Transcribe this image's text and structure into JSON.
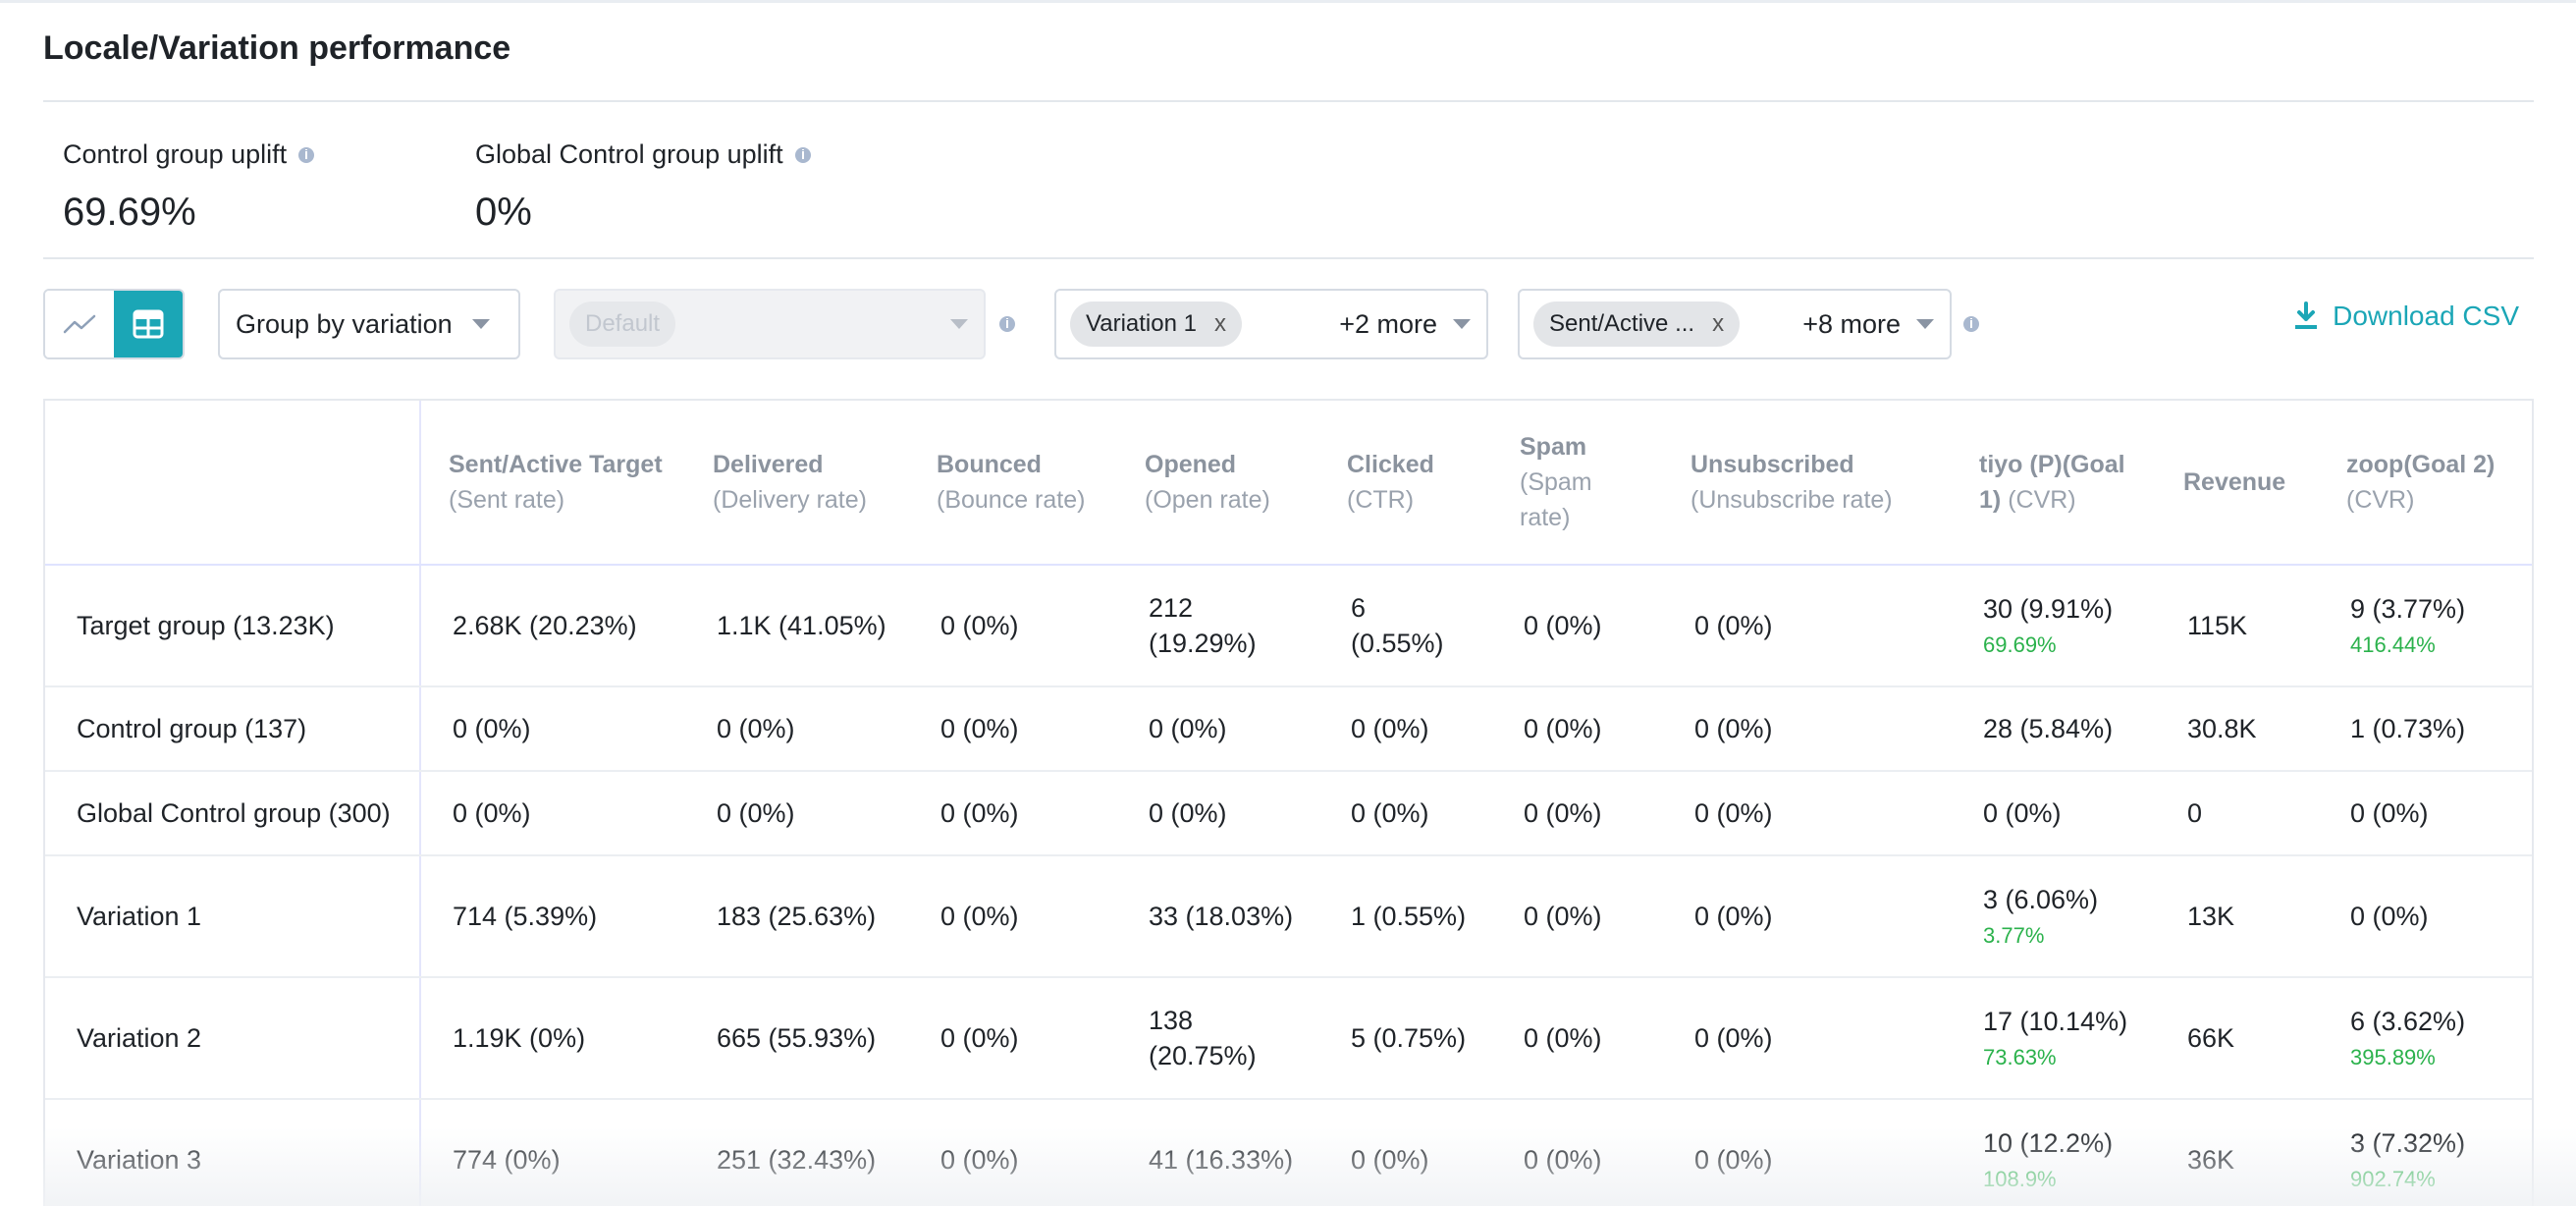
{
  "page": {
    "title": "Locale/Variation performance"
  },
  "metrics": [
    {
      "label": "Control group uplift",
      "value": "69.69%"
    },
    {
      "label": "Global Control group uplift",
      "value": "0%"
    }
  ],
  "toolbar": {
    "view_toggle": {
      "chart_icon": "line-chart-icon",
      "table_icon": "table-icon",
      "active": "table"
    },
    "group_by": {
      "value": "Group by variation"
    },
    "locale_select": {
      "placeholder_chip": "Default"
    },
    "variation_select": {
      "chip": "Variation 1",
      "chip_remove": "x",
      "more": "+2 more"
    },
    "metric_select": {
      "chip": "Sent/Active ...",
      "chip_remove": "x",
      "more": "+8 more"
    },
    "download_label": "Download CSV",
    "accent_color": "#1ba6b6"
  },
  "table": {
    "columns": [
      {
        "main": "",
        "sub": ""
      },
      {
        "main": "Sent/Active Target",
        "sub": "(Sent rate)"
      },
      {
        "main": "Delivered",
        "sub": "(Delivery rate)"
      },
      {
        "main": "Bounced",
        "sub": "(Bounce rate)"
      },
      {
        "main": "Opened",
        "sub": "(Open rate)"
      },
      {
        "main": "Clicked",
        "sub": "(CTR)"
      },
      {
        "main": "Spam",
        "sub": "(Spam rate)"
      },
      {
        "main": "Unsubscribed",
        "sub": "(Unsubscribe rate)"
      },
      {
        "main": "tiyo (P)(Goal 1)",
        "sub": "(CVR)"
      },
      {
        "main": "Revenue",
        "sub": ""
      },
      {
        "main": "zoop(Goal 2)",
        "sub": "(CVR)"
      }
    ],
    "rows": [
      {
        "label": "Target group (13.23K)",
        "cells": [
          "2.68K (20.23%)",
          "1.1K (41.05%)",
          "0 (0%)",
          "212 (19.29%)",
          "6 (0.55%)",
          "0 (0%)",
          "0 (0%)",
          "30 (9.91%)",
          "115K",
          "9 (3.77%)"
        ],
        "uplift": {
          "goal1": "69.69%",
          "goal2": "416.44%"
        }
      },
      {
        "label": "Control group (137)",
        "cells": [
          "0 (0%)",
          "0 (0%)",
          "0 (0%)",
          "0 (0%)",
          "0 (0%)",
          "0 (0%)",
          "0 (0%)",
          "28 (5.84%)",
          "30.8K",
          "1 (0.73%)"
        ],
        "uplift": {
          "goal1": "",
          "goal2": ""
        }
      },
      {
        "label": "Global Control group (300)",
        "cells": [
          "0 (0%)",
          "0 (0%)",
          "0 (0%)",
          "0 (0%)",
          "0 (0%)",
          "0 (0%)",
          "0 (0%)",
          "0 (0%)",
          "0",
          "0 (0%)"
        ],
        "uplift": {
          "goal1": "",
          "goal2": ""
        }
      },
      {
        "label": "Variation 1",
        "cells": [
          "714 (5.39%)",
          "183 (25.63%)",
          "0 (0%)",
          "33 (18.03%)",
          "1 (0.55%)",
          "0 (0%)",
          "0 (0%)",
          "3 (6.06%)",
          "13K",
          "0 (0%)"
        ],
        "uplift": {
          "goal1": "3.77%",
          "goal2": ""
        }
      },
      {
        "label": "Variation 2",
        "cells": [
          "1.19K (0%)",
          "665 (55.93%)",
          "0 (0%)",
          "138 (20.75%)",
          "5 (0.75%)",
          "0 (0%)",
          "0 (0%)",
          "17 (10.14%)",
          "66K",
          "6 (3.62%)"
        ],
        "uplift": {
          "goal1": "73.63%",
          "goal2": "395.89%"
        }
      },
      {
        "label": "Variation 3",
        "cells": [
          "774 (0%)",
          "251 (32.43%)",
          "0 (0%)",
          "41 (16.33%)",
          "0 (0%)",
          "0 (0%)",
          "0 (0%)",
          "10 (12.2%)",
          "36K",
          "3 (7.32%)"
        ],
        "uplift": {
          "goal1": "108.9%",
          "goal2": "902.74%"
        }
      }
    ],
    "uplift_color": "#2bb24c"
  }
}
